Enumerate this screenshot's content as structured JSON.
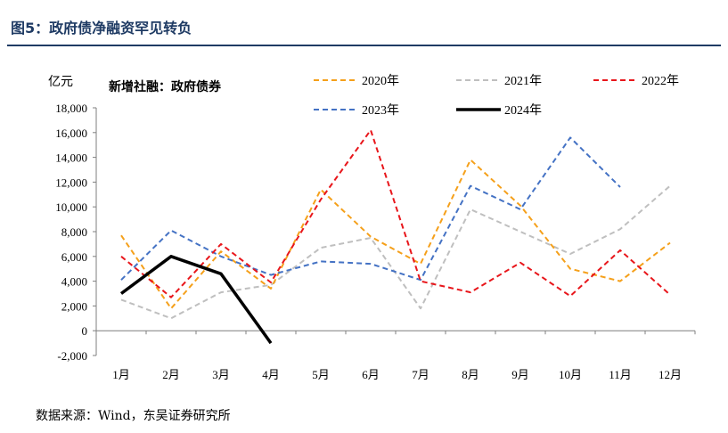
{
  "figure": {
    "title": "图5：政府债净融资罕见转负",
    "source": "数据来源：Wind，东吴证券研究所"
  },
  "chart_data": {
    "type": "line",
    "title": "新增社融：政府债券",
    "ylabel": "亿元",
    "xlabel": "",
    "ylim": [
      -2000,
      18000
    ],
    "yticks": [
      "-2,000",
      "0",
      "2,000",
      "4,000",
      "6,000",
      "8,000",
      "10,000",
      "12,000",
      "14,000",
      "16,000",
      "18,000"
    ],
    "ytick_values": [
      -2000,
      0,
      2000,
      4000,
      6000,
      8000,
      10000,
      12000,
      14000,
      16000,
      18000
    ],
    "categories": [
      "1月",
      "2月",
      "3月",
      "4月",
      "5月",
      "6月",
      "7月",
      "8月",
      "9月",
      "10月",
      "11月",
      "12月"
    ],
    "legend_position": "top",
    "grid": false,
    "series": [
      {
        "name": "2020年",
        "color": "#f5a01a",
        "style": "dashed",
        "values": [
          7700,
          1800,
          6400,
          3400,
          11400,
          7600,
          5400,
          13800,
          10100,
          5000,
          4000,
          7100
        ]
      },
      {
        "name": "2021年",
        "color": "#bfbfbf",
        "style": "dashed",
        "values": [
          2500,
          1000,
          3100,
          3700,
          6700,
          7500,
          1800,
          9800,
          8000,
          6200,
          8200,
          11700
        ]
      },
      {
        "name": "2022年",
        "color": "#e8161b",
        "style": "dashed",
        "values": [
          6000,
          2700,
          7000,
          3900,
          10600,
          16200,
          4000,
          3100,
          5500,
          2800,
          6500,
          2900
        ]
      },
      {
        "name": "2023年",
        "color": "#4472c4",
        "style": "dashed",
        "values": [
          4100,
          8100,
          6000,
          4500,
          5600,
          5400,
          4100,
          11700,
          9800,
          15600,
          11600,
          null
        ]
      },
      {
        "name": "2024年",
        "color": "#000000",
        "style": "solid",
        "values": [
          3000,
          6000,
          4600,
          -1000,
          null,
          null,
          null,
          null,
          null,
          null,
          null,
          null
        ]
      }
    ]
  }
}
